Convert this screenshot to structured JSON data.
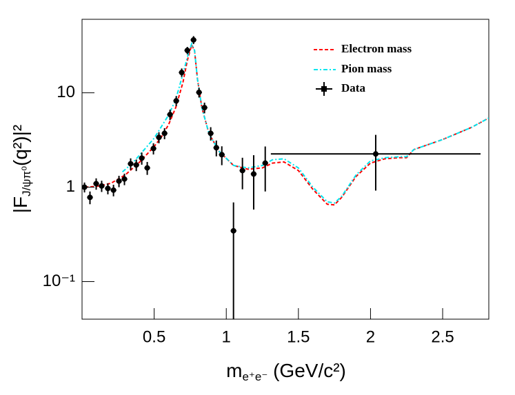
{
  "chart_data": {
    "type": "scatter",
    "xlabel": {
      "main": "m",
      "sub": "e⁺e⁻",
      "rest": " (GeV/c²)"
    },
    "ylabel": {
      "main": "|F",
      "sub": "J/ψπ⁰",
      "rest": "(q²)|²"
    },
    "xlim": [
      0,
      2.82
    ],
    "ylim": [
      0.04,
      60
    ],
    "log_y": true,
    "xticks": [
      0.5,
      1,
      1.5,
      2,
      2.5
    ],
    "yticks": [
      {
        "value": 0.1,
        "label": "10⁻¹"
      },
      1,
      10
    ],
    "legend": "upper right",
    "series": [
      {
        "name": "Electron mass",
        "color": "#ff0000",
        "style": "dashed",
        "x": [
          0.02,
          0.1,
          0.2,
          0.3,
          0.4,
          0.5,
          0.55,
          0.6,
          0.65,
          0.7,
          0.73,
          0.76,
          0.78,
          0.8,
          0.83,
          0.88,
          0.95,
          1.05,
          1.15,
          1.25,
          1.32,
          1.4,
          1.5,
          1.6,
          1.7,
          1.75,
          1.8,
          1.9,
          2.0,
          2.1,
          2.2,
          2.25,
          2.3,
          2.5,
          2.7,
          2.82
        ],
        "values": [
          1.0,
          1.02,
          1.1,
          1.35,
          1.85,
          2.7,
          3.4,
          4.6,
          7.0,
          13,
          22,
          32,
          28,
          14,
          7,
          3.7,
          2.4,
          1.7,
          1.55,
          1.6,
          1.8,
          1.85,
          1.5,
          0.95,
          0.66,
          0.65,
          0.78,
          1.3,
          1.8,
          2.0,
          2.05,
          2.05,
          2.5,
          3.2,
          4.3,
          5.4
        ]
      },
      {
        "name": "Pion mass",
        "color": "#00e5ee",
        "style": "dashdot",
        "x": [
          0.28,
          0.35,
          0.4,
          0.5,
          0.6,
          0.65,
          0.7,
          0.74,
          0.76,
          0.78,
          0.8,
          0.83,
          0.88,
          0.95,
          1.05,
          1.15,
          1.25,
          1.32,
          1.4,
          1.5,
          1.6,
          1.7,
          1.75,
          1.8,
          1.9,
          2.0,
          2.1,
          2.2,
          2.25,
          2.3,
          2.5,
          2.7,
          2.82
        ],
        "values": [
          1.45,
          1.8,
          2.2,
          3.3,
          5.8,
          8.5,
          16,
          27,
          33,
          28,
          14,
          7,
          3.7,
          2.4,
          1.7,
          1.6,
          1.7,
          1.95,
          2.0,
          1.6,
          1.0,
          0.7,
          0.68,
          0.8,
          1.35,
          1.9,
          2.05,
          2.1,
          2.1,
          2.5,
          3.2,
          4.3,
          5.4
        ]
      },
      {
        "name": "Data",
        "color": "#000000",
        "style": "points",
        "x": [
          0.017,
          0.055,
          0.098,
          0.136,
          0.179,
          0.218,
          0.256,
          0.294,
          0.337,
          0.376,
          0.414,
          0.452,
          0.495,
          0.533,
          0.572,
          0.61,
          0.653,
          0.691,
          0.73,
          0.773,
          0.811,
          0.849,
          0.892,
          0.931,
          0.969,
          1.05,
          1.112,
          1.19,
          1.27,
          2.036
        ],
        "values": [
          1.0,
          0.78,
          1.09,
          1.03,
          0.97,
          0.93,
          1.16,
          1.22,
          1.77,
          1.72,
          2.03,
          1.6,
          2.57,
          3.37,
          3.72,
          5.88,
          8.22,
          16.4,
          28.1,
          36.3,
          10.1,
          6.96,
          3.72,
          2.62,
          2.21,
          0.345,
          1.5,
          1.38,
          1.8,
          2.25
        ],
        "xerr": [
          0.02,
          0.02,
          0.02,
          0.02,
          0.02,
          0.02,
          0.02,
          0.02,
          0.02,
          0.02,
          0.02,
          0.02,
          0.02,
          0.02,
          0.02,
          0.02,
          0.02,
          0.02,
          0.02,
          0.02,
          0.02,
          0.02,
          0.02,
          0.02,
          0.02,
          0.02,
          0.02,
          0.02,
          0.02,
          0.727
        ],
        "yerr": [
          0.12,
          0.12,
          0.15,
          0.14,
          0.13,
          0.13,
          0.16,
          0.17,
          0.25,
          0.24,
          0.3,
          0.25,
          0.35,
          0.45,
          0.5,
          0.75,
          1.0,
          1.7,
          2.5,
          3.5,
          1.2,
          0.9,
          0.6,
          0.5,
          0.5,
          0.345,
          0.55,
          0.8,
          0.9,
          1.33
        ]
      }
    ]
  }
}
